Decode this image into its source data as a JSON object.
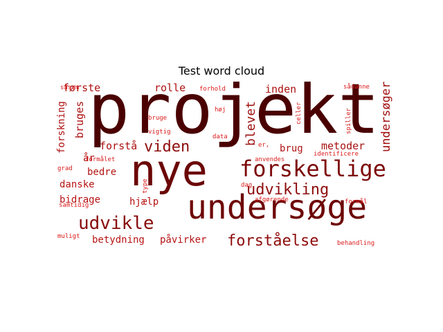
{
  "title": "Test word cloud",
  "words": [
    {
      "text": "projekt",
      "size": 100,
      "weight": 1.0,
      "vertical": false
    },
    {
      "text": "nye",
      "size": 62,
      "weight": 0.82,
      "vertical": false
    },
    {
      "text": "undersøge",
      "size": 48,
      "weight": 0.8,
      "vertical": false
    },
    {
      "text": "forskellige",
      "size": 32,
      "weight": 0.72,
      "vertical": false
    },
    {
      "text": "udvikle",
      "size": 26,
      "weight": 0.66,
      "vertical": false
    },
    {
      "text": "forståelse",
      "size": 22,
      "weight": 0.62,
      "vertical": false
    },
    {
      "text": "udvikling",
      "size": 22,
      "weight": 0.62,
      "vertical": false
    },
    {
      "text": "viden",
      "size": 22,
      "weight": 0.62,
      "vertical": false
    },
    {
      "text": "blevet",
      "size": 18,
      "weight": 0.54,
      "vertical": true
    },
    {
      "text": "undersøger",
      "size": 17,
      "weight": 0.52,
      "vertical": true
    },
    {
      "text": "metoder",
      "size": 15,
      "weight": 0.48,
      "vertical": false
    },
    {
      "text": "inden",
      "size": 15,
      "weight": 0.46,
      "vertical": false
    },
    {
      "text": "rolle",
      "size": 15,
      "weight": 0.46,
      "vertical": false
    },
    {
      "text": "første",
      "size": 15,
      "weight": 0.46,
      "vertical": false
    },
    {
      "text": "forstå",
      "size": 15,
      "weight": 0.46,
      "vertical": false
    },
    {
      "text": "bruges",
      "size": 15,
      "weight": 0.46,
      "vertical": true
    },
    {
      "text": "forskning",
      "size": 14,
      "weight": 0.44,
      "vertical": true
    },
    {
      "text": "brug",
      "size": 14,
      "weight": 0.44,
      "vertical": false
    },
    {
      "text": "bedre",
      "size": 14,
      "weight": 0.42,
      "vertical": false
    },
    {
      "text": "år",
      "size": 14,
      "weight": 0.42,
      "vertical": false
    },
    {
      "text": "danske",
      "size": 14,
      "weight": 0.4,
      "vertical": false
    },
    {
      "text": "bidrage",
      "size": 14,
      "weight": 0.4,
      "vertical": false
    },
    {
      "text": "hjælp",
      "size": 14,
      "weight": 0.4,
      "vertical": false
    },
    {
      "text": "betydning",
      "size": 14,
      "weight": 0.4,
      "vertical": false
    },
    {
      "text": "påvirker",
      "size": 14,
      "weight": 0.4,
      "vertical": false
    },
    {
      "text": "såsom",
      "size": 9,
      "weight": 0.2,
      "vertical": false
    },
    {
      "text": "forhold",
      "size": 9,
      "weight": 0.2,
      "vertical": false
    },
    {
      "text": "høj",
      "size": 9,
      "weight": 0.2,
      "vertical": false
    },
    {
      "text": "bruge",
      "size": 9,
      "weight": 0.2,
      "vertical": false
    },
    {
      "text": "vigtig",
      "size": 9,
      "weight": 0.2,
      "vertical": false
    },
    {
      "text": "data",
      "size": 9,
      "weight": 0.2,
      "vertical": false
    },
    {
      "text": "formålet",
      "size": 9,
      "weight": 0.2,
      "vertical": false
    },
    {
      "text": "grad",
      "size": 9,
      "weight": 0.2,
      "vertical": false
    },
    {
      "text": "type",
      "size": 9,
      "weight": 0.2,
      "vertical": true
    },
    {
      "text": "dag",
      "size": 9,
      "weight": 0.2,
      "vertical": false
    },
    {
      "text": "samtidig",
      "size": 9,
      "weight": 0.2,
      "vertical": false
    },
    {
      "text": "muligt",
      "size": 9,
      "weight": 0.2,
      "vertical": false
    },
    {
      "text": "sådanne",
      "size": 9,
      "weight": 0.2,
      "vertical": false
    },
    {
      "text": "celler",
      "size": 9,
      "weight": 0.2,
      "vertical": true
    },
    {
      "text": "er,",
      "size": 9,
      "weight": 0.2,
      "vertical": false
    },
    {
      "text": "identificere",
      "size": 9,
      "weight": 0.2,
      "vertical": false
    },
    {
      "text": "anvendes",
      "size": 9,
      "weight": 0.2,
      "vertical": false
    },
    {
      "text": "spiller",
      "size": 9,
      "weight": 0.2,
      "vertical": true
    },
    {
      "text": "afgørende",
      "size": 9,
      "weight": 0.2,
      "vertical": false
    },
    {
      "text": "formål",
      "size": 9,
      "weight": 0.2,
      "vertical": false
    },
    {
      "text": "behandling",
      "size": 9,
      "weight": 0.2,
      "vertical": false
    }
  ],
  "colors": {
    "strong": "#4a0000",
    "weak": "#ff2020",
    "background": "#ffffff"
  }
}
